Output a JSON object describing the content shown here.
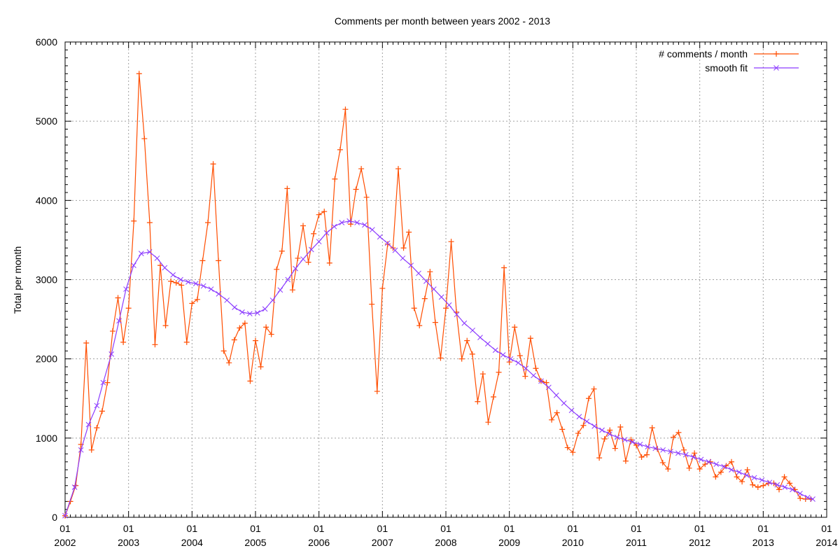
{
  "chart_data": {
    "type": "line",
    "title": "Comments per month between years 2002 - 2013",
    "xlabel": "",
    "ylabel": "Total per month",
    "ylim": [
      0,
      6000
    ],
    "xlim": [
      2002,
      2014
    ],
    "yticks": [
      0,
      1000,
      2000,
      3000,
      4000,
      5000,
      6000
    ],
    "xticks": [
      {
        "month": "01",
        "year": "2002"
      },
      {
        "month": "01",
        "year": "2003"
      },
      {
        "month": "01",
        "year": "2004"
      },
      {
        "month": "01",
        "year": "2005"
      },
      {
        "month": "01",
        "year": "2006"
      },
      {
        "month": "01",
        "year": "2007"
      },
      {
        "month": "01",
        "year": "2008"
      },
      {
        "month": "01",
        "year": "2009"
      },
      {
        "month": "01",
        "year": "2010"
      },
      {
        "month": "01",
        "year": "2011"
      },
      {
        "month": "01",
        "year": "2012"
      },
      {
        "month": "01",
        "year": "2013"
      },
      {
        "month": "01",
        "year": "2014"
      }
    ],
    "grid": true,
    "legend_position": "top-right",
    "series": [
      {
        "name": "# comments / month",
        "color": "#ff4d00",
        "marker": "plus",
        "start": "2002-01",
        "monthly_values": [
          20,
          200,
          400,
          920,
          2200,
          850,
          1130,
          1340,
          1700,
          2350,
          2770,
          2210,
          2640,
          3740,
          5600,
          4780,
          3720,
          2180,
          3180,
          2420,
          2980,
          2960,
          2930,
          2210,
          2700,
          2750,
          3240,
          3720,
          4460,
          3240,
          2100,
          1950,
          2240,
          2390,
          2450,
          1720,
          2230,
          1900,
          2400,
          2310,
          3130,
          3360,
          4150,
          2870,
          3270,
          3680,
          3220,
          3580,
          3820,
          3860,
          3210,
          4270,
          4640,
          5150,
          3700,
          4140,
          4400,
          4040,
          2690,
          1590,
          2890,
          3450,
          3400,
          4400,
          3400,
          3600,
          2640,
          2420,
          2760,
          3100,
          2460,
          2010,
          2640,
          3480,
          2590,
          2000,
          2230,
          2060,
          1460,
          1810,
          1200,
          1520,
          1830,
          3150,
          1960,
          2400,
          2040,
          1780,
          2260,
          1880,
          1720,
          1700,
          1230,
          1320,
          1110,
          880,
          820,
          1060,
          1160,
          1500,
          1620,
          750,
          990,
          1100,
          870,
          1140,
          710,
          980,
          910,
          760,
          790,
          1130,
          860,
          690,
          610,
          1010,
          1070,
          850,
          620,
          810,
          610,
          670,
          700,
          510,
          570,
          650,
          700,
          510,
          450,
          600,
          410,
          380,
          400,
          430,
          430,
          350,
          510,
          430,
          350,
          240,
          230,
          230
        ]
      },
      {
        "name": "smooth fit",
        "color": "#8c3cff",
        "marker": "cross",
        "points": [
          [
            2002.0,
            20
          ],
          [
            2002.15,
            380
          ],
          [
            2002.25,
            850
          ],
          [
            2002.37,
            1170
          ],
          [
            2002.5,
            1410
          ],
          [
            2002.6,
            1700
          ],
          [
            2002.73,
            2060
          ],
          [
            2002.85,
            2480
          ],
          [
            2002.96,
            2880
          ],
          [
            2003.08,
            3180
          ],
          [
            2003.2,
            3330
          ],
          [
            2003.33,
            3350
          ],
          [
            2003.45,
            3270
          ],
          [
            2003.57,
            3150
          ],
          [
            2003.7,
            3060
          ],
          [
            2003.82,
            3000
          ],
          [
            2003.94,
            2970
          ],
          [
            2004.06,
            2950
          ],
          [
            2004.18,
            2920
          ],
          [
            2004.3,
            2880
          ],
          [
            2004.42,
            2820
          ],
          [
            2004.55,
            2740
          ],
          [
            2004.67,
            2650
          ],
          [
            2004.79,
            2590
          ],
          [
            2004.91,
            2570
          ],
          [
            2005.03,
            2580
          ],
          [
            2005.15,
            2630
          ],
          [
            2005.27,
            2740
          ],
          [
            2005.39,
            2870
          ],
          [
            2005.51,
            3000
          ],
          [
            2005.63,
            3140
          ],
          [
            2005.75,
            3260
          ],
          [
            2005.88,
            3380
          ],
          [
            2006.0,
            3480
          ],
          [
            2006.12,
            3590
          ],
          [
            2006.24,
            3670
          ],
          [
            2006.36,
            3720
          ],
          [
            2006.48,
            3740
          ],
          [
            2006.6,
            3720
          ],
          [
            2006.72,
            3690
          ],
          [
            2006.84,
            3630
          ],
          [
            2006.96,
            3540
          ],
          [
            2007.08,
            3460
          ],
          [
            2007.2,
            3370
          ],
          [
            2007.32,
            3270
          ],
          [
            2007.45,
            3180
          ],
          [
            2007.57,
            3080
          ],
          [
            2007.69,
            2980
          ],
          [
            2007.81,
            2880
          ],
          [
            2007.93,
            2780
          ],
          [
            2008.05,
            2680
          ],
          [
            2008.17,
            2560
          ],
          [
            2008.29,
            2450
          ],
          [
            2008.42,
            2360
          ],
          [
            2008.54,
            2270
          ],
          [
            2008.66,
            2190
          ],
          [
            2008.78,
            2110
          ],
          [
            2008.9,
            2050
          ],
          [
            2009.02,
            2000
          ],
          [
            2009.14,
            1950
          ],
          [
            2009.26,
            1880
          ],
          [
            2009.38,
            1790
          ],
          [
            2009.5,
            1720
          ],
          [
            2009.62,
            1640
          ],
          [
            2009.74,
            1540
          ],
          [
            2009.86,
            1440
          ],
          [
            2009.98,
            1350
          ],
          [
            2010.1,
            1270
          ],
          [
            2010.22,
            1210
          ],
          [
            2010.34,
            1150
          ],
          [
            2010.46,
            1100
          ],
          [
            2010.58,
            1050
          ],
          [
            2010.7,
            1010
          ],
          [
            2010.82,
            980
          ],
          [
            2010.94,
            950
          ],
          [
            2011.06,
            920
          ],
          [
            2011.18,
            890
          ],
          [
            2011.3,
            870
          ],
          [
            2011.42,
            850
          ],
          [
            2011.54,
            830
          ],
          [
            2011.66,
            810
          ],
          [
            2011.78,
            790
          ],
          [
            2011.9,
            760
          ],
          [
            2012.02,
            730
          ],
          [
            2012.14,
            700
          ],
          [
            2012.26,
            670
          ],
          [
            2012.38,
            640
          ],
          [
            2012.5,
            600
          ],
          [
            2012.62,
            570
          ],
          [
            2012.74,
            530
          ],
          [
            2012.86,
            500
          ],
          [
            2012.98,
            470
          ],
          [
            2013.1,
            440
          ],
          [
            2013.22,
            410
          ],
          [
            2013.34,
            380
          ],
          [
            2013.46,
            350
          ],
          [
            2013.58,
            300
          ],
          [
            2013.7,
            250
          ],
          [
            2013.78,
            230
          ]
        ]
      }
    ]
  }
}
